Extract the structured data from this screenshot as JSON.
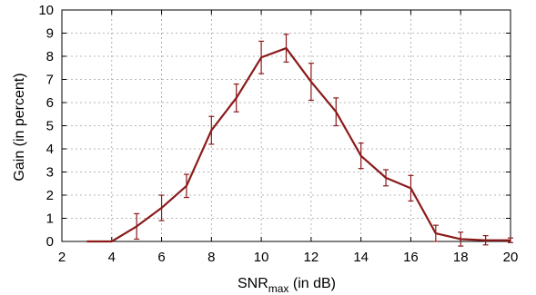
{
  "chart_data": {
    "type": "line",
    "xlabel_main": "SNR",
    "xlabel_sub": "max",
    "xlabel_rest": " (in dB)",
    "ylabel": "Gain (in percent)",
    "xlim": [
      2,
      20
    ],
    "ylim": [
      0,
      10
    ],
    "xticks": [
      2,
      4,
      6,
      8,
      10,
      12,
      14,
      16,
      18,
      20
    ],
    "yticks": [
      0,
      1,
      2,
      3,
      4,
      5,
      6,
      7,
      8,
      9,
      10
    ],
    "grid": true,
    "line_color": "#8b1a1a",
    "series": [
      {
        "x": [
          3,
          4,
          5,
          6,
          7,
          8,
          9,
          10,
          11,
          12,
          13,
          14,
          15,
          16,
          17,
          18,
          19,
          20
        ],
        "y": [
          0.0,
          0.0,
          0.65,
          1.45,
          2.4,
          4.8,
          6.2,
          7.95,
          8.35,
          6.9,
          5.6,
          3.7,
          2.75,
          2.3,
          0.35,
          0.1,
          0.05,
          0.05
        ],
        "err": [
          0.0,
          0.0,
          0.55,
          0.55,
          0.5,
          0.6,
          0.6,
          0.7,
          0.6,
          0.8,
          0.6,
          0.55,
          0.35,
          0.55,
          0.35,
          0.3,
          0.2,
          0.1
        ]
      }
    ]
  }
}
